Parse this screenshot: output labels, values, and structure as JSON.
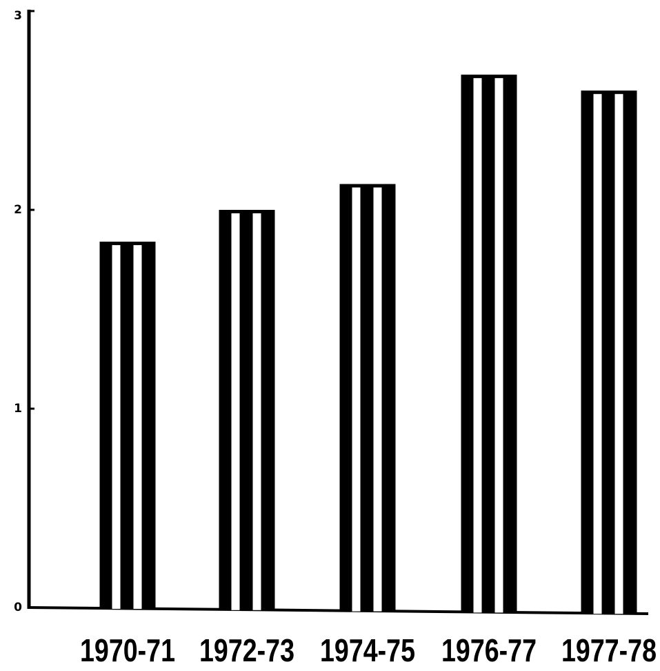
{
  "chart_data": {
    "type": "bar",
    "title": "",
    "xlabel": "",
    "ylabel": "",
    "categories": [
      "1970-71",
      "1972-73",
      "1974-75",
      "1976-77",
      "1977-78"
    ],
    "values": [
      1.84,
      2.0,
      2.13,
      2.68,
      2.6
    ],
    "ylim": [
      0,
      3
    ],
    "yticks": [
      0,
      1,
      2,
      3
    ],
    "grid": false,
    "legend": "none",
    "bar_pattern": "vertical black and white stripes",
    "colors": {
      "stripe_dark": "#000000",
      "stripe_light": "#ffffff",
      "axis": "#000000"
    }
  }
}
